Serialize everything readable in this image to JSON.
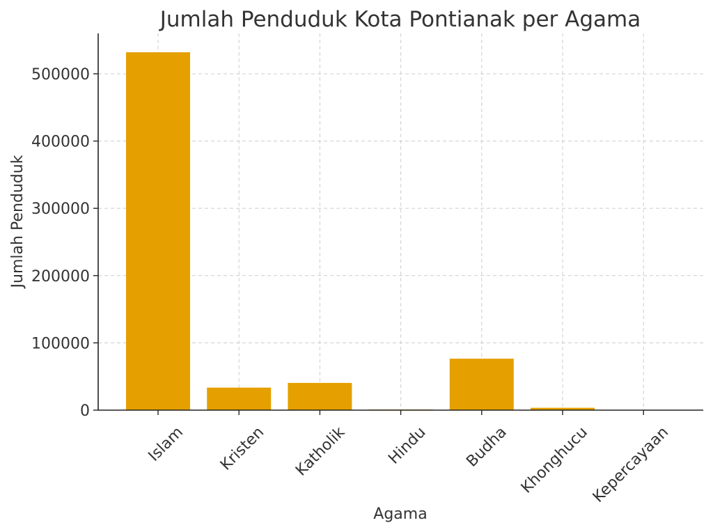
{
  "chart_data": {
    "type": "bar",
    "title": "Jumlah Penduduk Kota Pontianak per Agama",
    "xlabel": "Agama",
    "ylabel": "Jumlah Penduduk",
    "categories": [
      "Islam",
      "Kristen",
      "Katholik",
      "Hindu",
      "Budha",
      "Khonghucu",
      "Kepercayaan"
    ],
    "values": [
      532000,
      33500,
      40500,
      1000,
      76500,
      3500,
      100
    ],
    "ylim": [
      0,
      560000
    ],
    "yticks": [
      0,
      100000,
      200000,
      300000,
      400000,
      500000
    ],
    "ytick_labels": [
      "0",
      "100000",
      "200000",
      "300000",
      "400000",
      "500000"
    ],
    "grid": true,
    "bar_color": "#E5A000"
  }
}
